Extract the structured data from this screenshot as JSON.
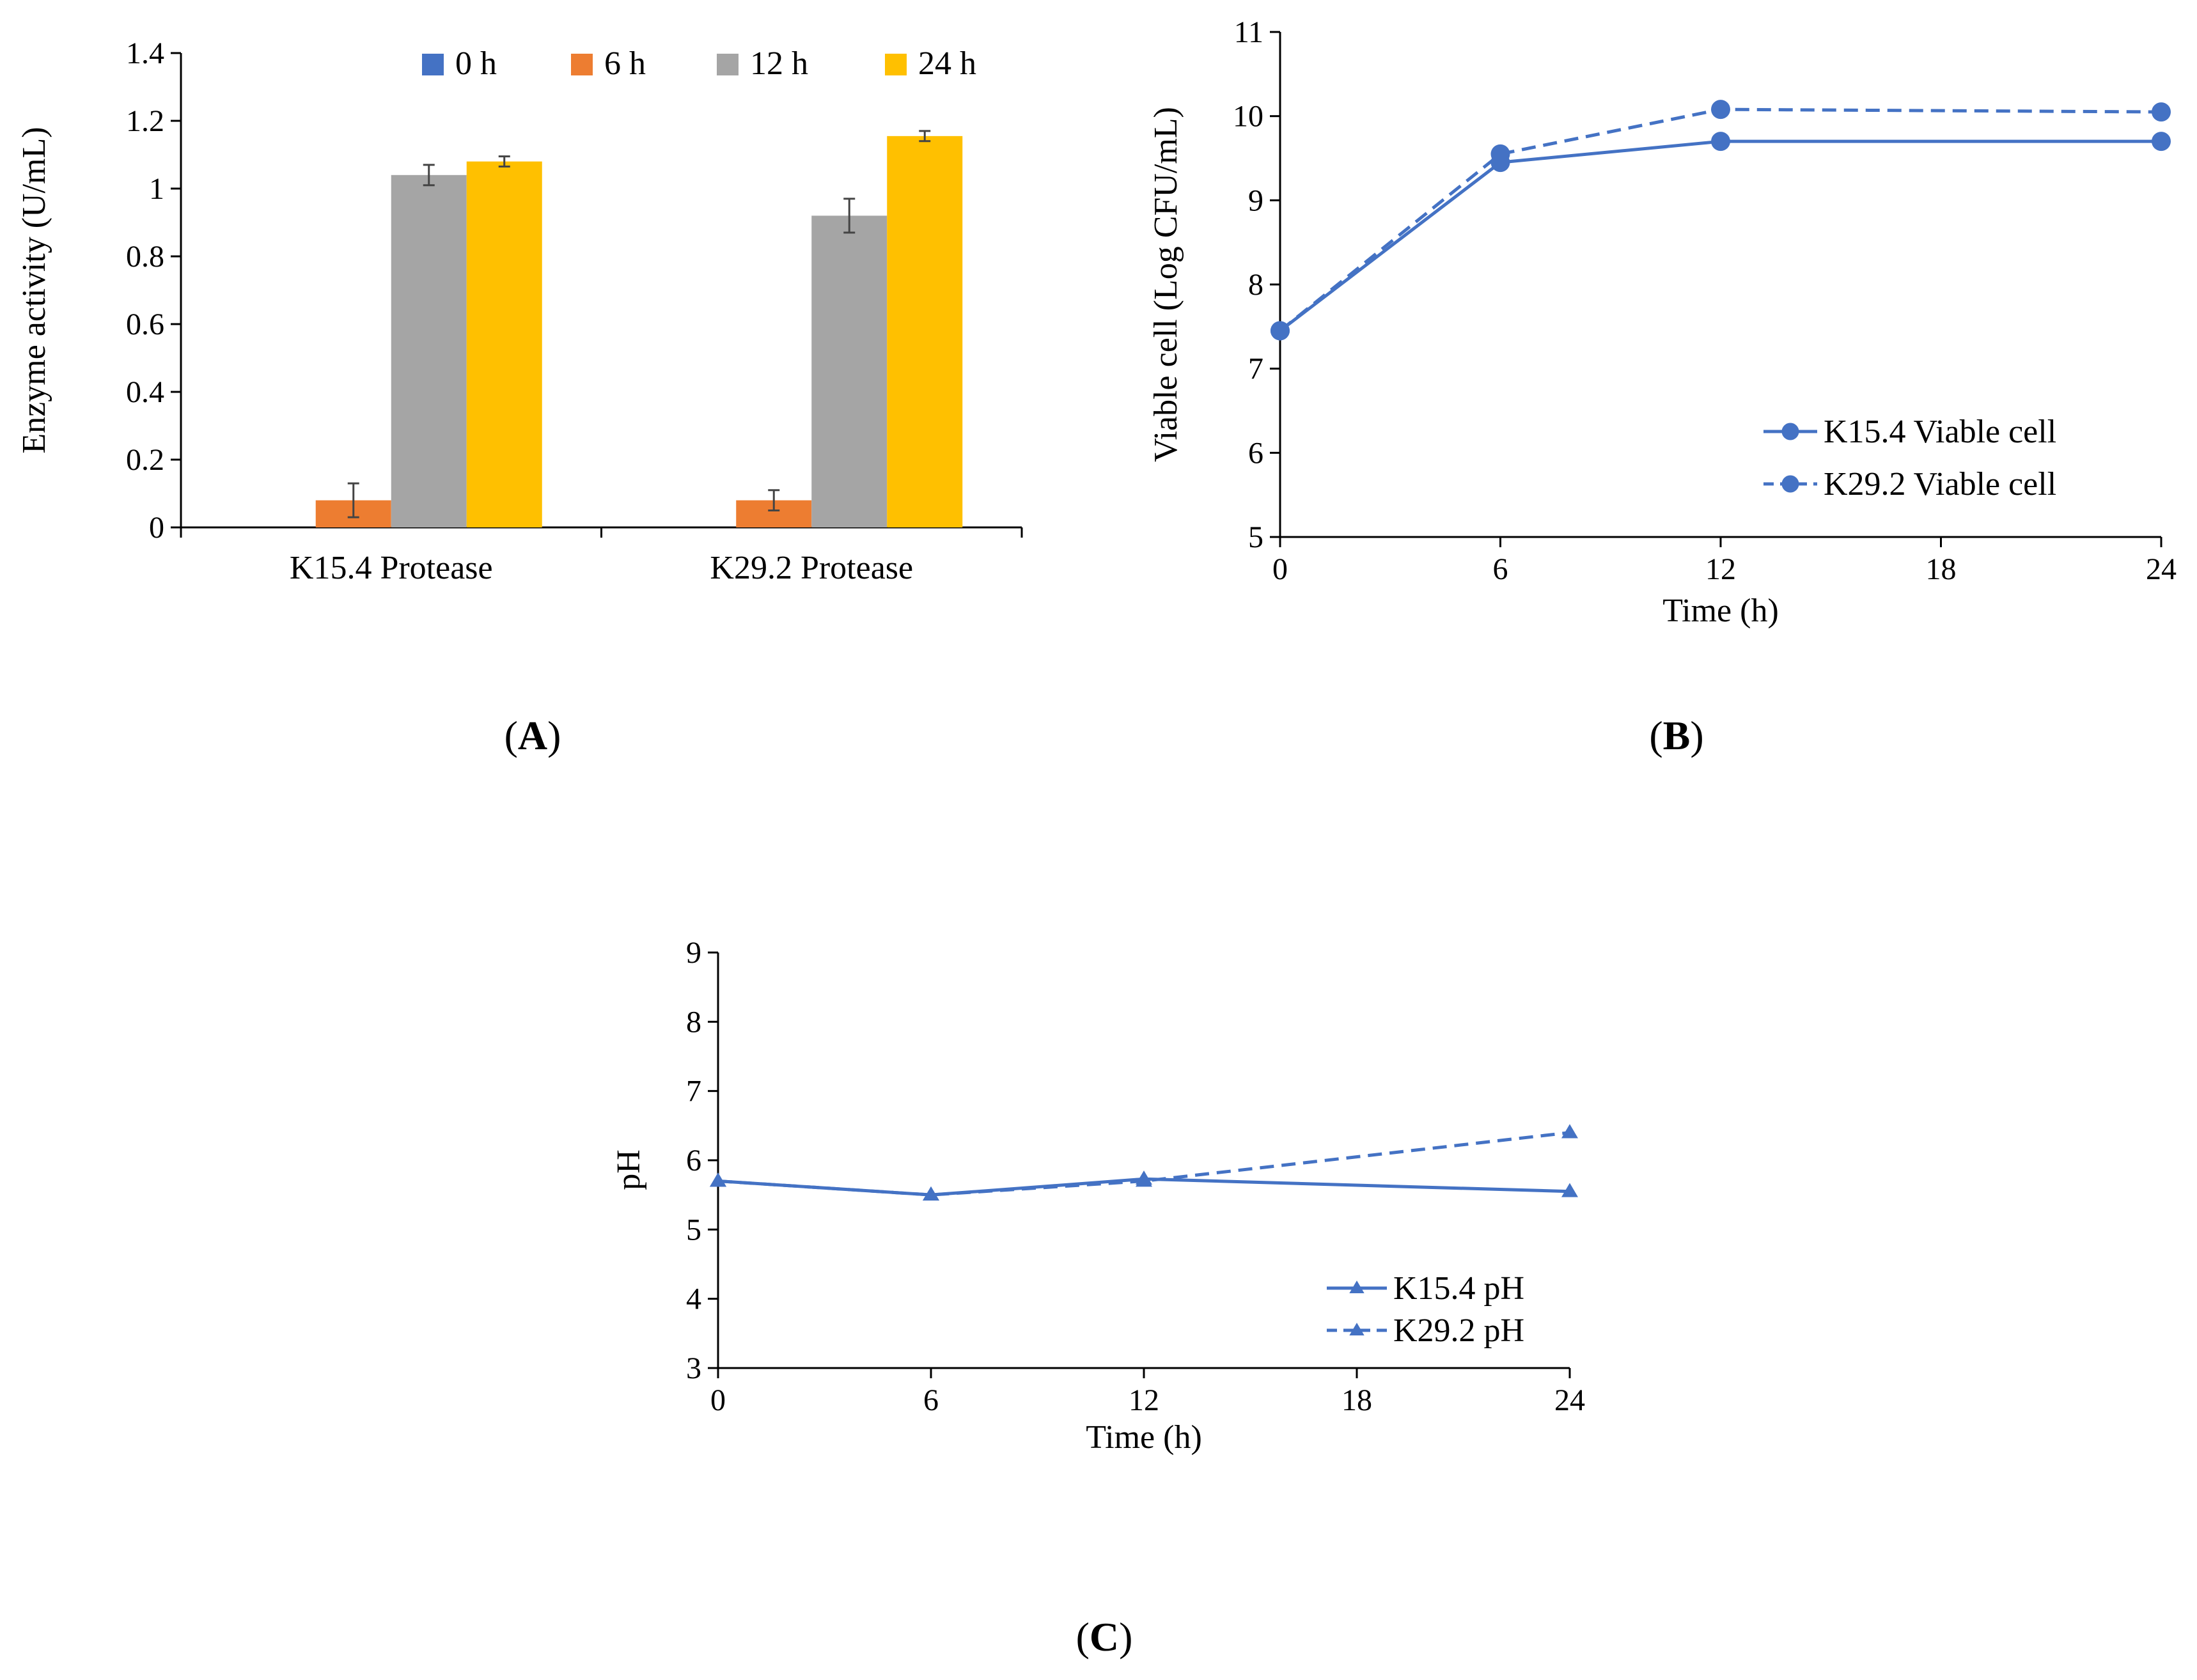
{
  "colors": {
    "bar_0h": "#4472C4",
    "bar_6h": "#ED7D31",
    "bar_12h": "#A5A5A5",
    "bar_24h": "#FFC000",
    "line": "#4472C4",
    "error": "#444444"
  },
  "chart_data": [
    {
      "panel": "A",
      "panel_label": "A",
      "type": "bar",
      "title": "",
      "xlabel": "",
      "ylabel": "Enzyme activity (U/mL)",
      "ylim": [
        0,
        1.4
      ],
      "yticks": [
        "0",
        "0.2",
        "0.4",
        "0.6",
        "0.8",
        "1",
        "1.2",
        "1.4"
      ],
      "categories": [
        "K15.4 Protease",
        "K29.2 Protease"
      ],
      "legend_position": "top-right",
      "series": [
        {
          "name": "0 h",
          "values": [
            0,
            0
          ],
          "errors": [
            0,
            0
          ]
        },
        {
          "name": "6 h",
          "values": [
            0.08,
            0.08
          ],
          "errors": [
            0.05,
            0.03
          ]
        },
        {
          "name": "12 h",
          "values": [
            1.04,
            0.92
          ],
          "errors": [
            0.03,
            0.05
          ]
        },
        {
          "name": "24 h",
          "values": [
            1.08,
            1.155
          ],
          "errors": [
            0.015,
            0.015
          ]
        }
      ]
    },
    {
      "panel": "B",
      "panel_label": "B",
      "type": "line",
      "title": "",
      "xlabel": "Time (h)",
      "ylabel": "Viable cell (Log CFU/mL)",
      "xlim": [
        0,
        24
      ],
      "ylim": [
        5,
        11
      ],
      "xticks": [
        "0",
        "6",
        "12",
        "18",
        "24"
      ],
      "yticks": [
        "5",
        "6",
        "7",
        "8",
        "9",
        "10",
        "11"
      ],
      "legend_position": "bottom-right",
      "series": [
        {
          "name": "K15.4 Viable cell",
          "x": [
            0,
            6,
            12,
            24
          ],
          "y": [
            7.45,
            9.45,
            9.7,
            9.7
          ],
          "dash": false,
          "marker": "circle"
        },
        {
          "name": "K29.2 Viable cell",
          "x": [
            0,
            6,
            12,
            24
          ],
          "y": [
            7.45,
            9.55,
            10.08,
            10.05
          ],
          "dash": true,
          "marker": "circle"
        }
      ]
    },
    {
      "panel": "C",
      "panel_label": "C",
      "type": "line",
      "title": "",
      "xlabel": "Time (h)",
      "ylabel": "pH",
      "xlim": [
        0,
        24
      ],
      "ylim": [
        3,
        9
      ],
      "xticks": [
        "0",
        "6",
        "12",
        "18",
        "24"
      ],
      "yticks": [
        "3",
        "4",
        "5",
        "6",
        "7",
        "8",
        "9"
      ],
      "legend_position": "bottom-right",
      "series": [
        {
          "name": "K15.4 pH",
          "x": [
            0,
            6,
            12,
            24
          ],
          "y": [
            5.7,
            5.5,
            5.73,
            5.55
          ],
          "dash": false,
          "marker": "triangle"
        },
        {
          "name": "K29.2 pH",
          "x": [
            0,
            6,
            12,
            24
          ],
          "y": [
            5.7,
            5.5,
            5.7,
            6.4
          ],
          "dash": true,
          "marker": "triangle"
        }
      ]
    }
  ]
}
